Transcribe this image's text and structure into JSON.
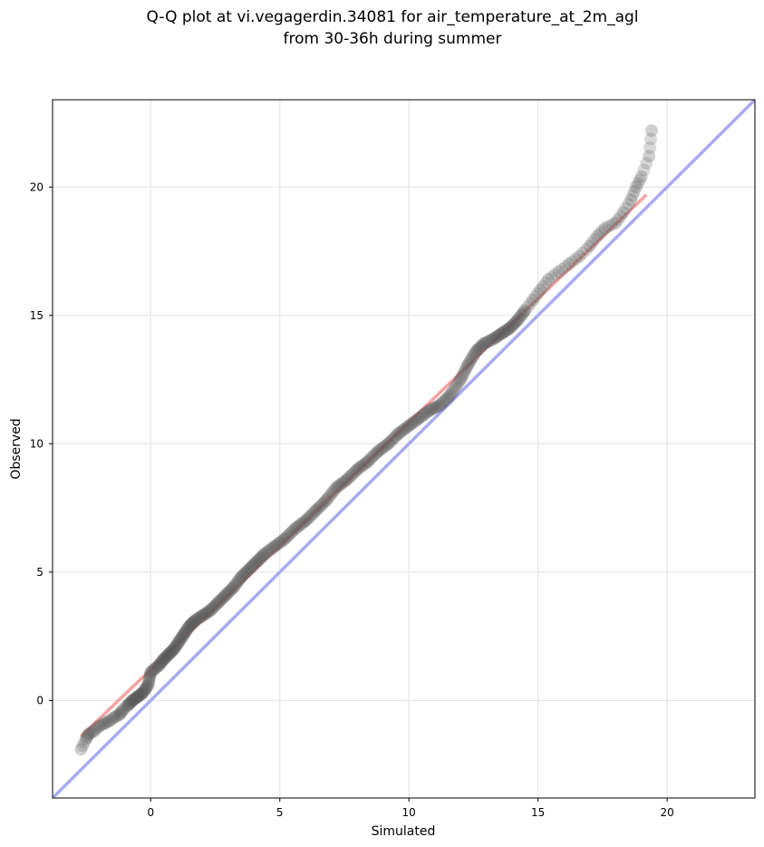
{
  "chart_data": {
    "type": "scatter",
    "title_line1": "Q-Q plot at vi.vegagerdin.34081 for air_temperature_at_2m_agl",
    "title_line2": "from 30-36h during summer",
    "xlabel": "Simulated",
    "ylabel": "Observed",
    "xlim": [
      -3.8,
      23.4
    ],
    "ylim": [
      -3.8,
      23.4
    ],
    "xticks": [
      0,
      5,
      10,
      15,
      20
    ],
    "yticks": [
      0,
      5,
      10,
      15,
      20
    ],
    "grid": true,
    "identity_line": {
      "color": "#aaaaf2",
      "from": [
        -3.8,
        -3.8
      ],
      "to": [
        23.4,
        23.4
      ]
    },
    "fit_line": {
      "color": "#f4a3a3",
      "from": [
        -2.7,
        -1.4
      ],
      "to": [
        19.2,
        19.7
      ]
    },
    "points_color": "#555555",
    "quantiles": [
      [
        -2.7,
        -1.9
      ],
      [
        -2.5,
        -1.5
      ],
      [
        -2.4,
        -1.3
      ],
      [
        -2.2,
        -1.2
      ],
      [
        -2.0,
        -1.0
      ],
      [
        -1.8,
        -0.9
      ],
      [
        -1.6,
        -0.8
      ],
      [
        -1.4,
        -0.65
      ],
      [
        -1.2,
        -0.55
      ],
      [
        -1.1,
        -0.4
      ],
      [
        -0.9,
        -0.2
      ],
      [
        -0.7,
        0.0
      ],
      [
        -0.5,
        0.15
      ],
      [
        -0.3,
        0.3
      ],
      [
        -0.1,
        0.6
      ],
      [
        0.0,
        1.1
      ],
      [
        0.3,
        1.35
      ],
      [
        0.5,
        1.6
      ],
      [
        0.7,
        1.8
      ],
      [
        0.9,
        2.0
      ],
      [
        1.1,
        2.3
      ],
      [
        1.3,
        2.6
      ],
      [
        1.5,
        2.9
      ],
      [
        1.7,
        3.1
      ],
      [
        2.0,
        3.3
      ],
      [
        2.3,
        3.5
      ],
      [
        2.6,
        3.8
      ],
      [
        2.9,
        4.1
      ],
      [
        3.2,
        4.4
      ],
      [
        3.5,
        4.8
      ],
      [
        3.8,
        5.1
      ],
      [
        4.1,
        5.4
      ],
      [
        4.4,
        5.7
      ],
      [
        4.8,
        6.0
      ],
      [
        5.2,
        6.3
      ],
      [
        5.6,
        6.7
      ],
      [
        6.0,
        7.0
      ],
      [
        6.4,
        7.4
      ],
      [
        6.8,
        7.8
      ],
      [
        7.2,
        8.3
      ],
      [
        7.6,
        8.6
      ],
      [
        8.0,
        9.0
      ],
      [
        8.4,
        9.3
      ],
      [
        8.8,
        9.7
      ],
      [
        9.2,
        10.0
      ],
      [
        9.6,
        10.4
      ],
      [
        10.0,
        10.7
      ],
      [
        10.4,
        11.0
      ],
      [
        10.8,
        11.3
      ],
      [
        11.2,
        11.5
      ],
      [
        11.6,
        11.9
      ],
      [
        12.0,
        12.5
      ],
      [
        12.3,
        13.1
      ],
      [
        12.6,
        13.6
      ],
      [
        12.9,
        13.9
      ],
      [
        13.3,
        14.1
      ],
      [
        13.6,
        14.3
      ],
      [
        13.9,
        14.5
      ],
      [
        14.2,
        14.8
      ],
      [
        14.5,
        15.2
      ],
      [
        14.8,
        15.6
      ],
      [
        15.1,
        16.0
      ],
      [
        15.4,
        16.4
      ],
      [
        15.8,
        16.7
      ],
      [
        16.2,
        17.0
      ],
      [
        16.6,
        17.3
      ],
      [
        17.0,
        17.7
      ],
      [
        17.3,
        18.1
      ],
      [
        17.6,
        18.4
      ],
      [
        18.0,
        18.6
      ],
      [
        18.3,
        19.0
      ],
      [
        18.6,
        19.5
      ],
      [
        18.8,
        20.0
      ],
      [
        19.0,
        20.4
      ],
      [
        19.3,
        21.2
      ],
      [
        19.4,
        22.2
      ]
    ]
  }
}
